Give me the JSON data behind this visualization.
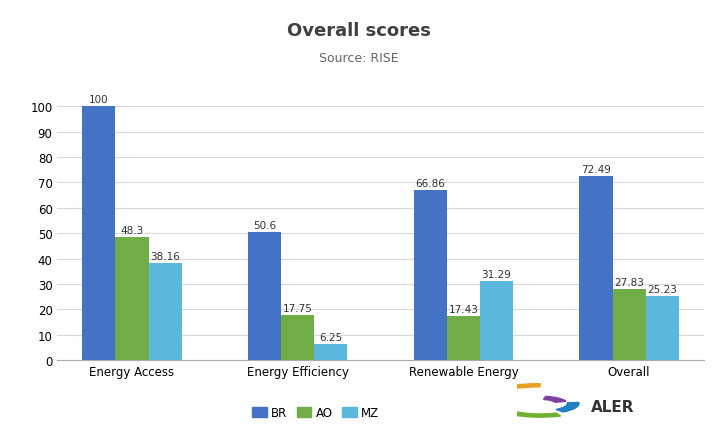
{
  "title": "Overall scores",
  "subtitle": "Source: RISE",
  "categories": [
    "Energy Access",
    "Energy Efficiency",
    "Renewable Energy",
    "Overall"
  ],
  "series": {
    "BR": [
      100,
      50.6,
      66.86,
      72.49
    ],
    "AO": [
      48.3,
      17.75,
      17.43,
      27.83
    ],
    "MZ": [
      38.16,
      6.25,
      31.29,
      25.23
    ]
  },
  "colors": {
    "BR": "#4472C4",
    "AO": "#70AD47",
    "MZ": "#5BB7DB"
  },
  "ylim": [
    0,
    108
  ],
  "yticks": [
    0,
    10,
    20,
    30,
    40,
    50,
    60,
    70,
    80,
    90,
    100
  ],
  "bar_width": 0.2,
  "title_fontsize": 13,
  "subtitle_fontsize": 9,
  "label_fontsize": 7.5,
  "tick_fontsize": 8.5,
  "legend_fontsize": 8.5,
  "background_color": "#FFFFFF",
  "grid_color": "#D9D9D9"
}
